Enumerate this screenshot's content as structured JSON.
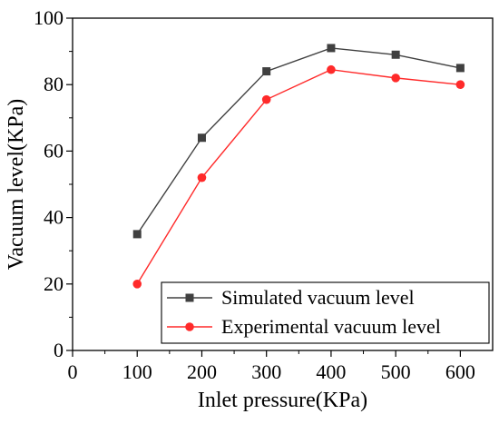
{
  "chart_data": {
    "type": "line",
    "title": "",
    "xlabel": "Inlet pressure(KPa)",
    "ylabel": "Vacuum level(KPa)",
    "xlim": [
      0,
      650
    ],
    "ylim": [
      0,
      100
    ],
    "xticks": [
      0,
      100,
      200,
      300,
      400,
      500,
      600
    ],
    "yticks": [
      0,
      20,
      40,
      60,
      80,
      100
    ],
    "x": [
      100,
      200,
      300,
      400,
      500,
      600
    ],
    "grid": false,
    "legend_position": "bottom-right",
    "series": [
      {
        "name": "Simulated vacuum level",
        "values": [
          35,
          64,
          84,
          91,
          89,
          85
        ],
        "color": "#404040",
        "marker": "square"
      },
      {
        "name": "Experimental vacuum level",
        "values": [
          20,
          52,
          75.5,
          84.5,
          82,
          80
        ],
        "color": "#ff2a2a",
        "marker": "circle"
      }
    ]
  }
}
